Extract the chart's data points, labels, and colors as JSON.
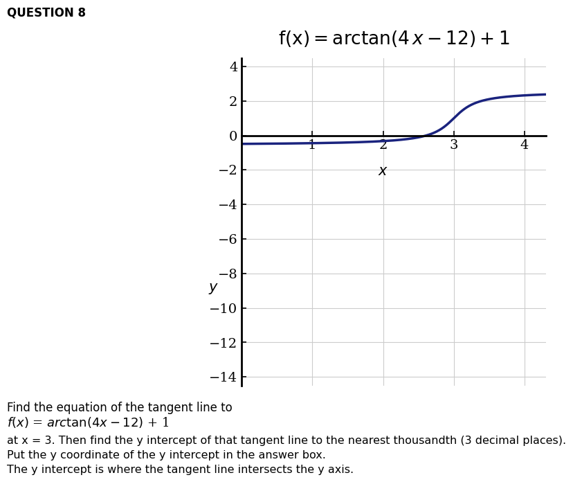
{
  "title": "f(x) = arctan(4 x − 12) + 1",
  "xlabel": "x",
  "ylabel": "y",
  "xlim": [
    0,
    4.3
  ],
  "ylim": [
    -14.5,
    4.5
  ],
  "xticks": [
    1,
    2,
    3,
    4
  ],
  "yticks": [
    4,
    2,
    0,
    -2,
    -4,
    -6,
    -8,
    -10,
    -12,
    -14
  ],
  "curve_color": "#1a237e",
  "curve_linewidth": 2.5,
  "background_color": "#ffffff",
  "grid_color": "#cccccc",
  "question_text": "QUESTION 8",
  "text_line1": "Find the equation of the tangent line to",
  "text_line3": "at x = 3. Then find the y intercept of that tangent line to the nearest thousandth (3 decimal places).",
  "text_line4": "Put the y coordinate of the y intercept in the answer box.",
  "text_line5": "The y intercept is where the tangent line intersects the y axis.",
  "x_label_data_x": 2.0,
  "x_label_data_y": -1.7,
  "y_label_offset_x": -0.5,
  "y_label_data_y": -8
}
